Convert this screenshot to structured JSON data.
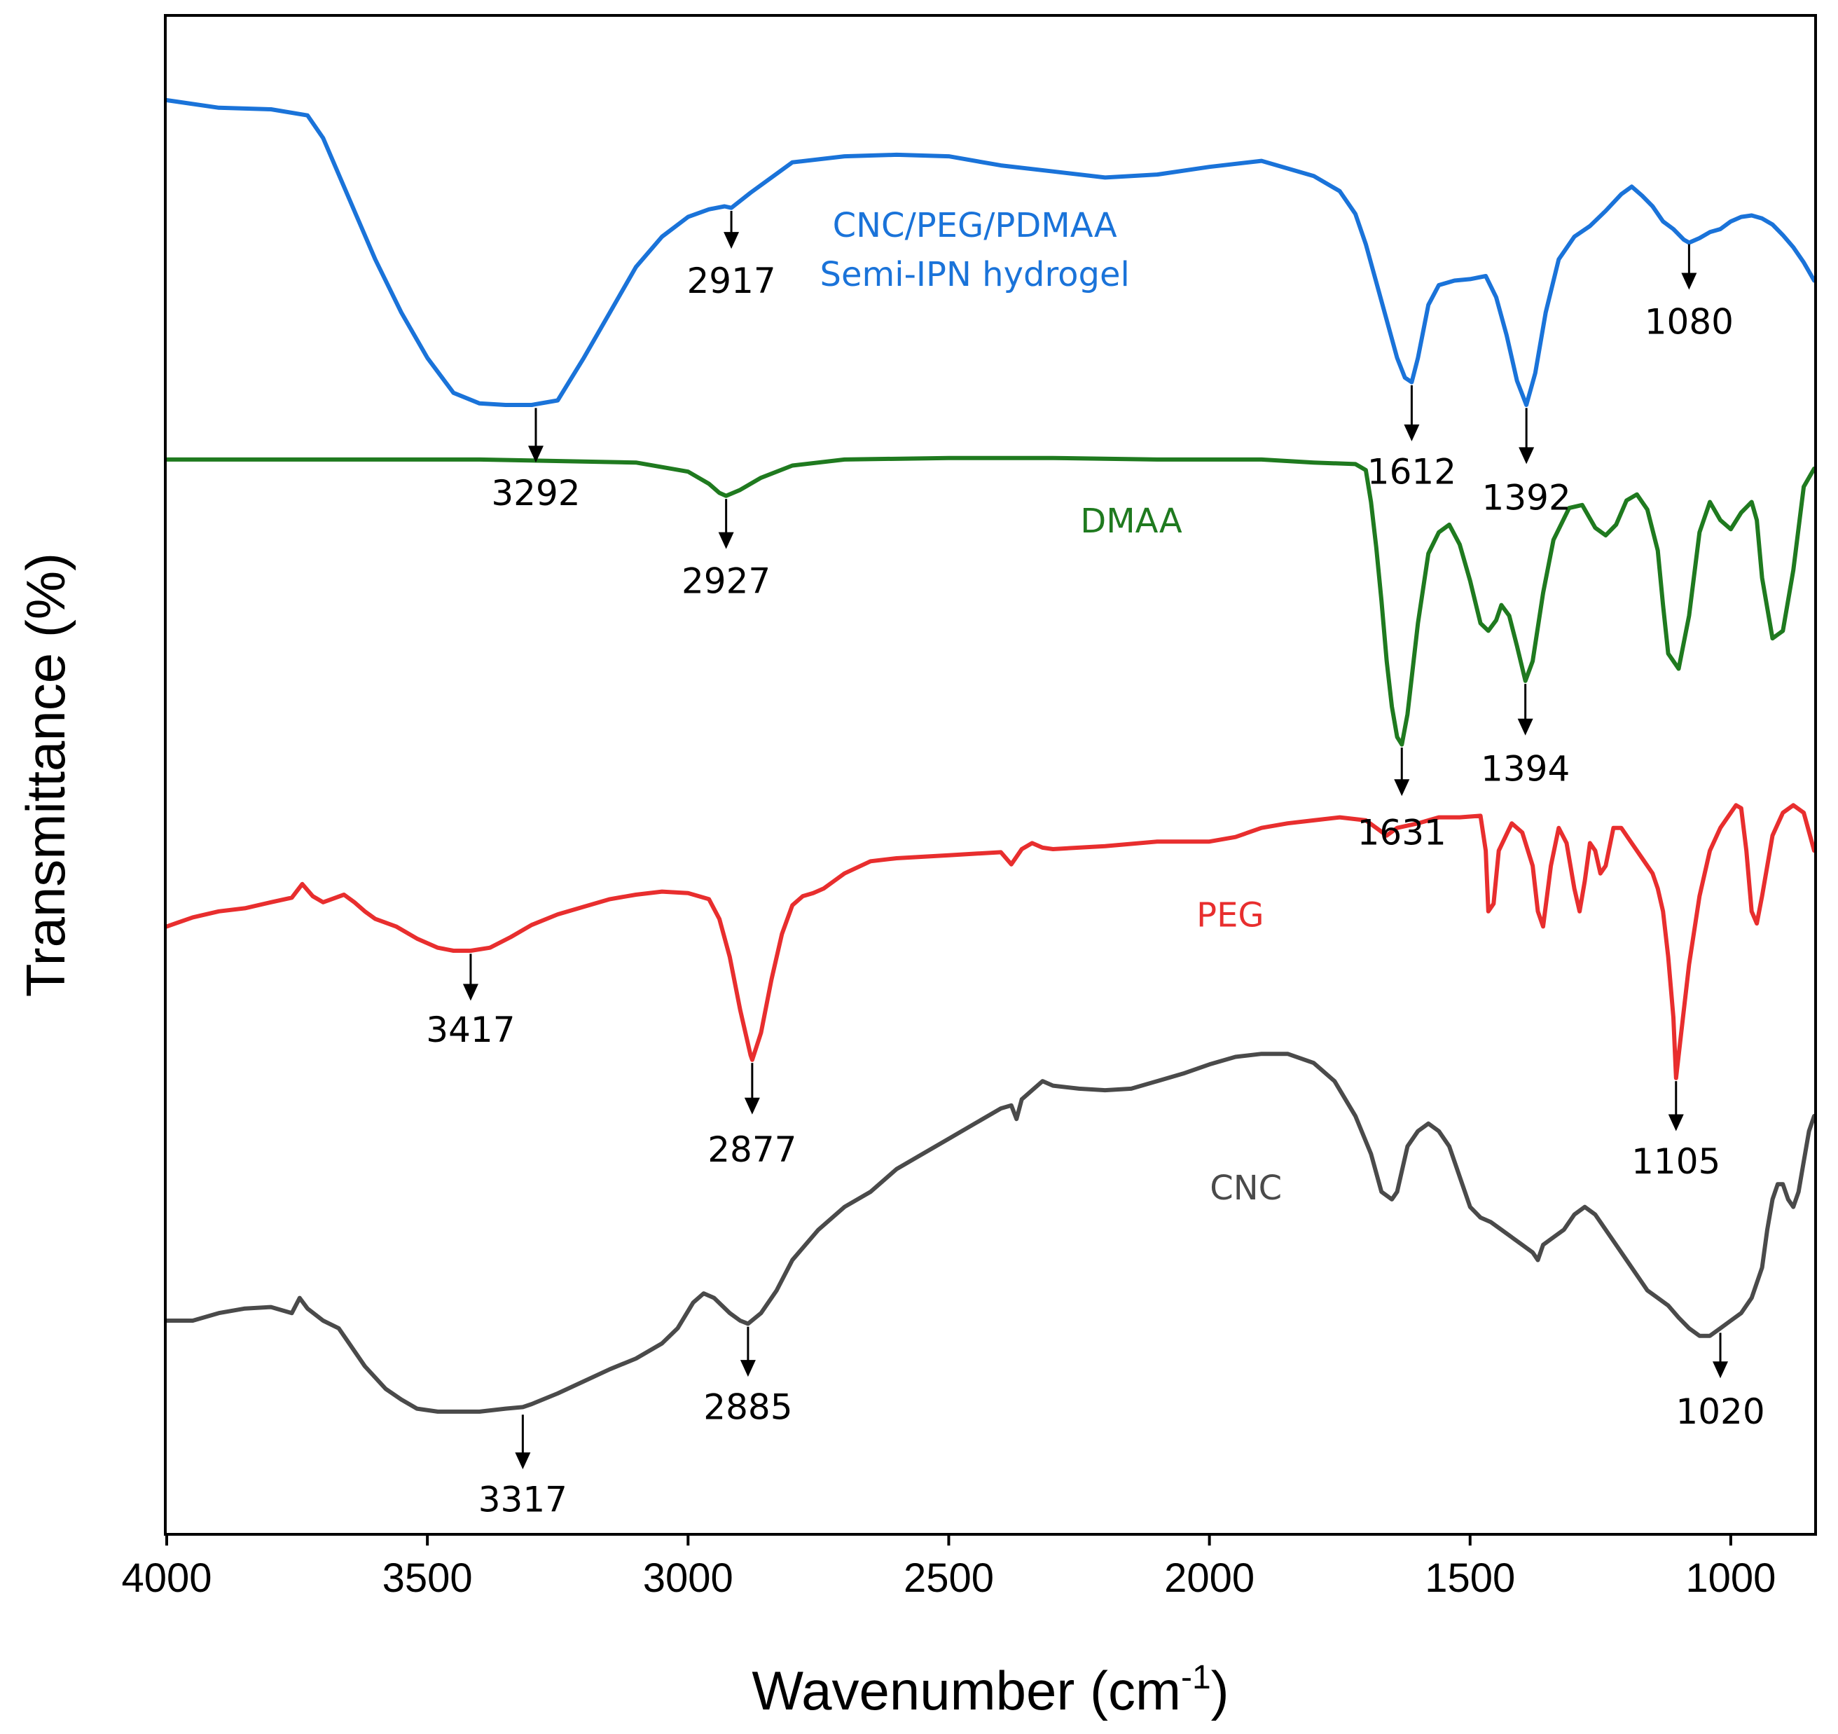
{
  "chart_data": {
    "type": "line",
    "title": "",
    "xlabel": "Wavenumber (cm",
    "xlabel_sup": "-1",
    "xlabel_close": ")",
    "ylabel": "Transmittance (%)",
    "xlim": [
      4000,
      840
    ],
    "ylim": [
      0,
      100
    ],
    "xticks": [
      4000,
      3500,
      3000,
      2500,
      2000,
      1500,
      1000
    ],
    "xtick_labels": [
      "4000",
      "3500",
      "3000",
      "2500",
      "2000",
      "1500",
      "1000"
    ],
    "grid": false,
    "series": [
      {
        "name": "CNC/PEG/PDMAA Semi-IPN hydrogel",
        "label_lines": [
          "CNC/PEG/PDMAA",
          "Semi-IPN hydrogel"
        ],
        "label_x": 2450,
        "label_y": 85.5,
        "color": "#1a73d9",
        "x": [
          4000,
          3900,
          3800,
          3730,
          3700,
          3650,
          3600,
          3550,
          3500,
          3450,
          3400,
          3350,
          3300,
          3250,
          3200,
          3150,
          3100,
          3050,
          3000,
          2960,
          2930,
          2917,
          2880,
          2800,
          2700,
          2600,
          2500,
          2400,
          2300,
          2200,
          2100,
          2000,
          1900,
          1800,
          1750,
          1720,
          1700,
          1680,
          1660,
          1640,
          1625,
          1612,
          1600,
          1580,
          1560,
          1530,
          1500,
          1470,
          1450,
          1430,
          1410,
          1392,
          1375,
          1355,
          1330,
          1300,
          1270,
          1240,
          1210,
          1190,
          1170,
          1150,
          1130,
          1110,
          1090,
          1080,
          1060,
          1040,
          1020,
          1000,
          980,
          960,
          940,
          920,
          900,
          880,
          860,
          840
        ],
        "y": [
          94.5,
          94.0,
          93.9,
          93.5,
          92,
          88,
          84,
          80.5,
          77.5,
          75.2,
          74.5,
          74.4,
          74.4,
          74.7,
          77.5,
          80.5,
          83.5,
          85.5,
          86.8,
          87.3,
          87.5,
          87.4,
          88.4,
          90.4,
          90.8,
          90.9,
          90.8,
          90.2,
          89.8,
          89.4,
          89.6,
          90.1,
          90.5,
          89.5,
          88.5,
          87.0,
          85.0,
          82.5,
          80.0,
          77.5,
          76.2,
          75.9,
          77.5,
          81.0,
          82.3,
          82.6,
          82.7,
          82.9,
          81.5,
          79.0,
          76.0,
          74.4,
          76.5,
          80.5,
          84.0,
          85.5,
          86.2,
          87.2,
          88.3,
          88.8,
          88.2,
          87.5,
          86.5,
          86.0,
          85.3,
          85.1,
          85.4,
          85.8,
          86.0,
          86.5,
          86.8,
          86.9,
          86.7,
          86.3,
          85.6,
          84.8,
          83.8,
          82.6
        ]
      },
      {
        "name": "DMAA",
        "label_lines": [
          "DMAA"
        ],
        "label_x": 2150,
        "label_y": 66.0,
        "color": "#1f7a1f",
        "x": [
          4000,
          3700,
          3400,
          3100,
          3000,
          2960,
          2940,
          2927,
          2900,
          2860,
          2800,
          2700,
          2500,
          2300,
          2100,
          1900,
          1800,
          1720,
          1700,
          1690,
          1680,
          1670,
          1660,
          1650,
          1640,
          1631,
          1620,
          1600,
          1580,
          1560,
          1540,
          1520,
          1500,
          1480,
          1465,
          1450,
          1440,
          1425,
          1410,
          1394,
          1380,
          1360,
          1340,
          1310,
          1285,
          1260,
          1240,
          1220,
          1200,
          1180,
          1160,
          1140,
          1130,
          1120,
          1100,
          1080,
          1060,
          1040,
          1020,
          1000,
          980,
          960,
          950,
          940,
          920,
          900,
          880,
          860,
          840
        ],
        "y": [
          70.8,
          70.8,
          70.8,
          70.6,
          70.0,
          69.2,
          68.6,
          68.4,
          68.8,
          69.6,
          70.4,
          70.8,
          70.9,
          70.9,
          70.8,
          70.8,
          70.6,
          70.5,
          70.1,
          68.0,
          65.0,
          61.5,
          57.5,
          54.5,
          52.5,
          52.0,
          54.0,
          60.0,
          64.6,
          66.0,
          66.5,
          65.2,
          62.8,
          60.0,
          59.5,
          60.2,
          61.2,
          60.5,
          58.5,
          56.2,
          57.5,
          62.0,
          65.5,
          67.6,
          67.8,
          66.3,
          65.8,
          66.5,
          68.1,
          68.5,
          67.5,
          64.8,
          61.2,
          58.0,
          57.0,
          60.5,
          66.0,
          68.0,
          66.8,
          66.2,
          67.3,
          68.0,
          66.8,
          63.0,
          59.0,
          59.5,
          63.5,
          69.0,
          70.2
        ]
      },
      {
        "name": "PEG",
        "label_lines": [
          "PEG"
        ],
        "label_x": 1960,
        "label_y": 40.0,
        "color": "#e82e2e",
        "x": [
          4000,
          3950,
          3900,
          3850,
          3800,
          3760,
          3740,
          3720,
          3700,
          3660,
          3640,
          3620,
          3600,
          3560,
          3520,
          3480,
          3450,
          3417,
          3380,
          3340,
          3300,
          3250,
          3200,
          3150,
          3100,
          3050,
          3000,
          2960,
          2940,
          2920,
          2900,
          2880,
          2877,
          2860,
          2840,
          2820,
          2800,
          2780,
          2760,
          2740,
          2720,
          2700,
          2650,
          2600,
          2550,
          2500,
          2450,
          2400,
          2380,
          2360,
          2340,
          2320,
          2300,
          2200,
          2100,
          2000,
          1950,
          1900,
          1850,
          1800,
          1750,
          1700,
          1680,
          1660,
          1640,
          1600,
          1560,
          1520,
          1480,
          1470,
          1465,
          1455,
          1445,
          1420,
          1400,
          1380,
          1370,
          1360,
          1345,
          1330,
          1315,
          1300,
          1290,
          1280,
          1270,
          1260,
          1250,
          1240,
          1225,
          1210,
          1190,
          1170,
          1150,
          1140,
          1130,
          1120,
          1110,
          1105,
          1095,
          1080,
          1060,
          1040,
          1020,
          1000,
          990,
          980,
          970,
          960,
          950,
          940,
          920,
          900,
          880,
          860,
          840
        ],
        "y": [
          40.0,
          40.6,
          41.0,
          41.2,
          41.6,
          41.9,
          42.8,
          42.0,
          41.6,
          42.1,
          41.6,
          41.0,
          40.5,
          40.0,
          39.2,
          38.6,
          38.4,
          38.4,
          38.6,
          39.3,
          40.1,
          40.8,
          41.3,
          41.8,
          42.1,
          42.3,
          42.2,
          41.8,
          40.5,
          38.0,
          34.5,
          31.5,
          31.2,
          33.0,
          36.5,
          39.5,
          41.4,
          42.0,
          42.2,
          42.5,
          43.0,
          43.5,
          44.3,
          44.5,
          44.6,
          44.7,
          44.8,
          44.9,
          44.1,
          45.1,
          45.5,
          45.2,
          45.1,
          45.3,
          45.6,
          45.6,
          45.9,
          46.5,
          46.8,
          47.0,
          47.2,
          47.0,
          46.5,
          46.0,
          46.5,
          46.8,
          47.2,
          47.2,
          47.3,
          45.0,
          41.0,
          41.5,
          45.0,
          46.8,
          46.2,
          44.0,
          41.0,
          40.0,
          44.0,
          46.5,
          45.5,
          42.5,
          41.0,
          43.0,
          45.5,
          45.0,
          43.5,
          44.0,
          46.5,
          46.5,
          45.5,
          44.5,
          43.5,
          42.5,
          41.0,
          38.0,
          34.0,
          30.0,
          33.0,
          37.5,
          42.0,
          45.0,
          46.5,
          47.5,
          48.0,
          47.8,
          45.0,
          41.0,
          40.2,
          42.0,
          46.0,
          47.5,
          48.0,
          47.5,
          45.0
        ]
      },
      {
        "name": "CNC",
        "label_lines": [
          "CNC"
        ],
        "label_x": 1930,
        "label_y": 22.0,
        "color": "#4a4a4a",
        "x": [
          4000,
          3950,
          3900,
          3850,
          3800,
          3760,
          3745,
          3730,
          3700,
          3670,
          3650,
          3620,
          3580,
          3550,
          3520,
          3480,
          3450,
          3400,
          3350,
          3317,
          3300,
          3250,
          3200,
          3150,
          3100,
          3050,
          3020,
          2990,
          2970,
          2950,
          2920,
          2900,
          2885,
          2860,
          2830,
          2800,
          2750,
          2700,
          2650,
          2600,
          2550,
          2500,
          2450,
          2400,
          2380,
          2370,
          2360,
          2340,
          2320,
          2300,
          2250,
          2200,
          2150,
          2100,
          2050,
          2000,
          1950,
          1900,
          1850,
          1800,
          1760,
          1720,
          1690,
          1670,
          1650,
          1640,
          1620,
          1600,
          1580,
          1560,
          1540,
          1520,
          1500,
          1480,
          1460,
          1440,
          1420,
          1400,
          1380,
          1370,
          1360,
          1340,
          1320,
          1300,
          1280,
          1260,
          1240,
          1220,
          1200,
          1180,
          1160,
          1140,
          1120,
          1100,
          1080,
          1060,
          1040,
          1020,
          1000,
          980,
          960,
          940,
          930,
          920,
          910,
          900,
          890,
          880,
          870,
          860,
          850,
          840
        ],
        "y": [
          14.0,
          14.0,
          14.5,
          14.8,
          14.9,
          14.5,
          15.5,
          14.8,
          14.0,
          13.5,
          12.5,
          11.0,
          9.5,
          8.8,
          8.2,
          8.0,
          8.0,
          8.0,
          8.2,
          8.3,
          8.5,
          9.2,
          10.0,
          10.8,
          11.5,
          12.5,
          13.5,
          15.2,
          15.8,
          15.5,
          14.5,
          14.0,
          13.8,
          14.5,
          16.0,
          18.0,
          20.0,
          21.5,
          22.5,
          24.0,
          25.0,
          26.0,
          27.0,
          28.0,
          28.2,
          27.3,
          28.6,
          29.2,
          29.8,
          29.5,
          29.3,
          29.2,
          29.3,
          29.8,
          30.3,
          30.9,
          31.4,
          31.6,
          31.6,
          31.0,
          29.8,
          27.5,
          25.0,
          22.5,
          22.0,
          22.5,
          25.5,
          26.5,
          27.0,
          26.5,
          25.5,
          23.5,
          21.5,
          20.8,
          20.5,
          20.0,
          19.5,
          19.0,
          18.5,
          18.0,
          19.0,
          19.5,
          20.0,
          21.0,
          21.5,
          21.0,
          20.0,
          19.0,
          18.0,
          17.0,
          16.0,
          15.5,
          15.0,
          14.2,
          13.5,
          13.0,
          13.0,
          13.5,
          14.0,
          14.5,
          15.5,
          17.5,
          20.0,
          22.0,
          23.0,
          23.0,
          22.0,
          21.5,
          22.5,
          24.5,
          26.5,
          27.5
        ]
      }
    ],
    "annotations": [
      {
        "text": "3292",
        "x": 3292,
        "y_from": 74.2,
        "y_to": 70.6,
        "label_y": 67.8
      },
      {
        "text": "2917",
        "x": 2917,
        "y_from": 87.2,
        "y_to": 84.7,
        "label_y": 81.8
      },
      {
        "text": "1612",
        "x": 1612,
        "y_from": 75.7,
        "y_to": 72.0,
        "label_y": 69.2
      },
      {
        "text": "1392",
        "x": 1392,
        "y_from": 74.2,
        "y_to": 70.5,
        "label_y": 67.5
      },
      {
        "text": "1080",
        "x": 1080,
        "y_from": 85.0,
        "y_to": 82.0,
        "label_y": 79.1
      },
      {
        "text": "2927",
        "x": 2927,
        "y_from": 68.2,
        "y_to": 64.9,
        "label_y": 62.0
      },
      {
        "text": "1631",
        "x": 1631,
        "y_from": 51.8,
        "y_to": 48.6,
        "label_y": 45.4
      },
      {
        "text": "1394",
        "x": 1394,
        "y_from": 56.0,
        "y_to": 52.6,
        "label_y": 49.6
      },
      {
        "text": "3417",
        "x": 3417,
        "y_from": 38.2,
        "y_to": 35.1,
        "label_y": 32.4
      },
      {
        "text": "2877",
        "x": 2877,
        "y_from": 31.0,
        "y_to": 27.6,
        "label_y": 24.5
      },
      {
        "text": "1105",
        "x": 1105,
        "y_from": 29.8,
        "y_to": 26.5,
        "label_y": 23.7
      },
      {
        "text": "3317",
        "x": 3317,
        "y_from": 7.8,
        "y_to": 4.2,
        "label_y": 1.4
      },
      {
        "text": "2885",
        "x": 2885,
        "y_from": 13.6,
        "y_to": 10.3,
        "label_y": 7.5
      },
      {
        "text": "1020",
        "x": 1020,
        "y_from": 13.2,
        "y_to": 10.2,
        "label_y": 7.2
      }
    ]
  }
}
